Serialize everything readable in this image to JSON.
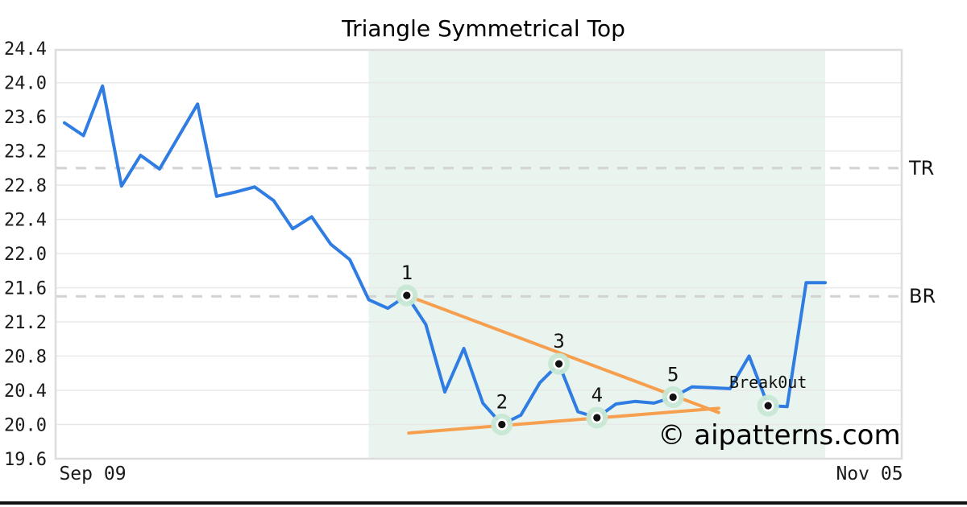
{
  "title": "Triangle Symmetrical Top",
  "watermark": "© aipatterns.com",
  "levels": {
    "top_resistance": {
      "label": "TR",
      "value": 23.0
    },
    "bottom_resistance": {
      "label": "BR",
      "value": 21.5
    }
  },
  "x_axis": {
    "ticks": [
      {
        "label": "Sep 09"
      },
      {
        "label": "Nov 05"
      }
    ]
  },
  "y_axis": {
    "min": 19.6,
    "max": 24.4,
    "step": 0.4,
    "tick_labels": [
      "24.4",
      "24.0",
      "23.6",
      "23.2",
      "22.8",
      "22.4",
      "22.0",
      "21.6",
      "21.2",
      "20.8",
      "20.4",
      "20.0",
      "19.6"
    ]
  },
  "chart_data": {
    "type": "line",
    "title": "Triangle Symmetrical Top",
    "ylim": [
      19.6,
      24.4
    ],
    "grid": "horizontal",
    "values": [
      23.53,
      23.38,
      23.96,
      22.79,
      23.15,
      22.99,
      23.37,
      23.75,
      22.67,
      22.72,
      22.78,
      22.62,
      22.29,
      22.43,
      22.11,
      21.93,
      21.46,
      21.36,
      21.51,
      21.17,
      20.38,
      20.89,
      20.25,
      20.0,
      20.11,
      20.49,
      20.71,
      20.15,
      20.08,
      20.24,
      20.27,
      20.25,
      20.32,
      20.44,
      20.43,
      20.42,
      20.8,
      20.22,
      20.21,
      21.66,
      21.66
    ],
    "pattern_points": [
      {
        "label": "1",
        "index": 18,
        "value": 21.51
      },
      {
        "label": "2",
        "index": 23,
        "value": 20.0
      },
      {
        "label": "3",
        "index": 26,
        "value": 20.71
      },
      {
        "label": "4",
        "index": 28,
        "value": 20.08
      },
      {
        "label": "5",
        "index": 32,
        "value": 20.32
      },
      {
        "label": "Break0ut",
        "index": 37,
        "value": 20.22
      }
    ],
    "trendlines": {
      "upper": {
        "i1": 18.0,
        "v1": 21.51,
        "i2": 34.4,
        "v2": 20.14
      },
      "lower": {
        "i1": 18.1,
        "v1": 19.9,
        "i2": 34.4,
        "v2": 20.19
      }
    },
    "highlight_region": {
      "i1": 16.0,
      "i2": 40.0
    },
    "levels": [
      {
        "label": "TR",
        "value": 23.0
      },
      {
        "label": "BR",
        "value": 21.5
      }
    ]
  },
  "colors": {
    "price_line": "#2f7de2",
    "trendline": "#f6a04f",
    "highlight": "#eaf4ef",
    "marker_halo": "#c8e7d4",
    "marker_dot": "#111111",
    "marker_ring": "#ffffff",
    "level_dash": "#d2d2d2",
    "grid": "#e8e8e8",
    "plot_border": "#dddddd",
    "watermark": "#c8c5f2",
    "bottom_bar": "#111111"
  }
}
